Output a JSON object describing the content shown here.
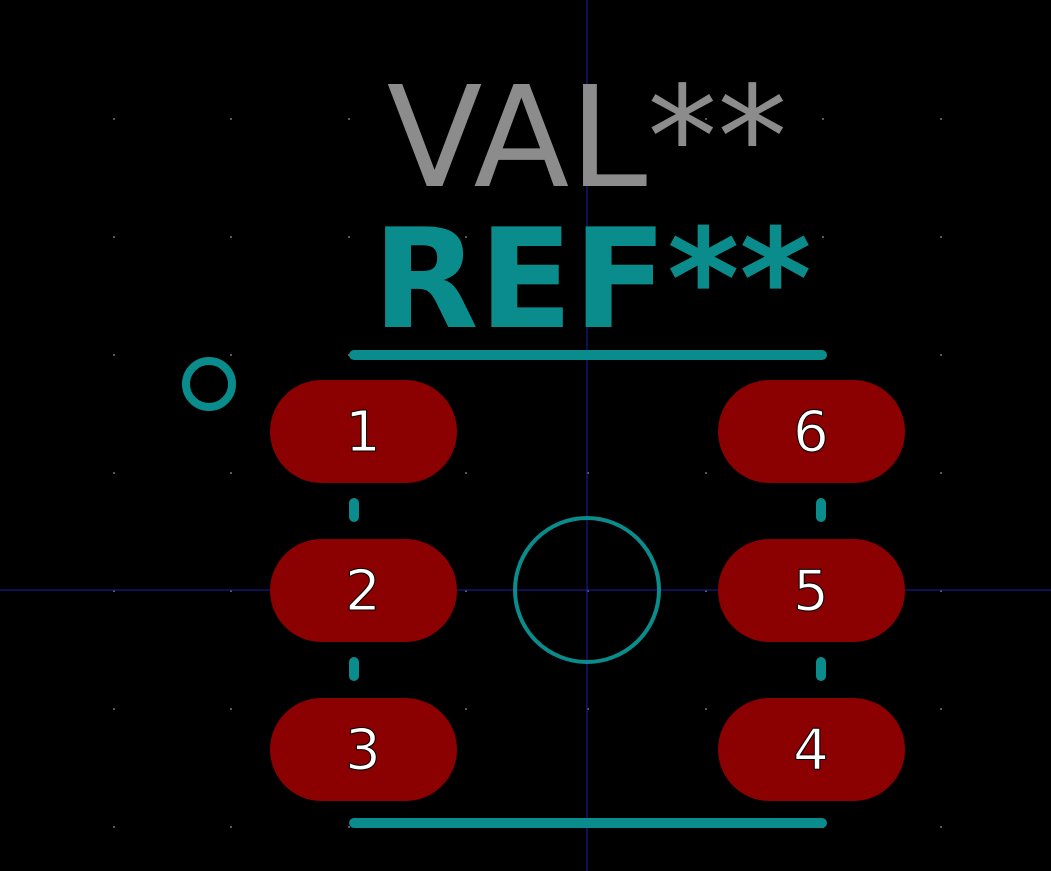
{
  "footprint": {
    "value_text": "VAL**",
    "reference_text": "REF**",
    "pads": [
      {
        "number": "1"
      },
      {
        "number": "2"
      },
      {
        "number": "3"
      },
      {
        "number": "4"
      },
      {
        "number": "5"
      },
      {
        "number": "6"
      }
    ]
  },
  "colors": {
    "background": "#000000",
    "grid_dot": "#5a5a5a",
    "axis": "#1c1caa",
    "silkscreen": "#0a8c8c",
    "fab_text": "#8c8c8c",
    "pad_fill": "#8b0000",
    "pad_number": "#ffffff",
    "pad_number_stroke": "#000000"
  }
}
